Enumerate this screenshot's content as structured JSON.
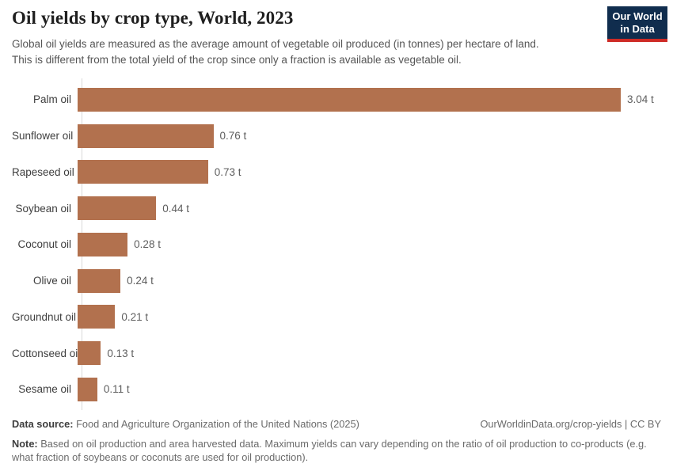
{
  "header": {
    "title": "Oil yields by crop type, World, 2023",
    "subtitle_line1": "Global oil yields are measured as the average amount of vegetable oil produced (in tonnes) per hectare of land.",
    "subtitle_line2": "This is different from the total yield of the crop since only a fraction is available as vegetable oil."
  },
  "logo": {
    "line1": "Our World",
    "line2": "in Data",
    "bg_color": "#102D4E",
    "accent_color": "#CE2B26"
  },
  "chart_data": {
    "type": "bar",
    "orientation": "horizontal",
    "title": "Oil yields by crop type, World, 2023",
    "unit": "tonnes of vegetable oil per hectare",
    "categories": [
      "Palm oil",
      "Sunflower oil",
      "Rapeseed oil",
      "Soybean oil",
      "Coconut oil",
      "Olive oil",
      "Groundnut oil",
      "Cottonseed oil",
      "Sesame oil"
    ],
    "values": [
      3.04,
      0.76,
      0.73,
      0.44,
      0.28,
      0.24,
      0.21,
      0.13,
      0.11
    ],
    "value_labels": [
      "3.04 t",
      "0.76 t",
      "0.73 t",
      "0.44 t",
      "0.28 t",
      "0.24 t",
      "0.21 t",
      "0.13 t",
      "0.11 t"
    ],
    "xlim": [
      0,
      3.04
    ],
    "bar_color": "#B2714E",
    "axis_color": "#D9D9D9",
    "grid": false,
    "legend": "none"
  },
  "footer": {
    "datasource_label": "Data source:",
    "datasource_text": "Food and Agriculture Organization of the United Nations (2025)",
    "link_text": "OurWorldinData.org/crop-yields | CC BY",
    "note_label": "Note:",
    "note_line1": "Based on oil production and area harvested data. Maximum yields can vary depending on the ratio of oil production to co-products (e.g.",
    "note_line2": "what fraction of soybeans or coconuts are used for oil production)."
  }
}
